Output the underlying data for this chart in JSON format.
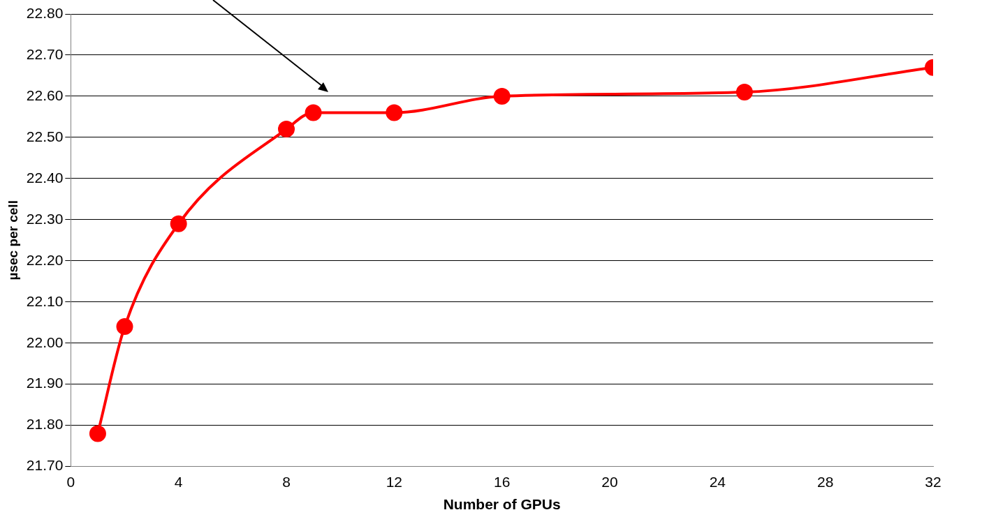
{
  "chart_data": {
    "type": "line",
    "xlabel": "Number of GPUs",
    "ylabel": "µsec per cell",
    "x": [
      1,
      2,
      4,
      8,
      9,
      12,
      16,
      25,
      32
    ],
    "series": [
      {
        "color": "#ff0000",
        "values": [
          21.78,
          22.04,
          22.29,
          22.52,
          22.56,
          22.56,
          22.6,
          22.61,
          22.67
        ]
      }
    ],
    "xlim": [
      0,
      32
    ],
    "xticks": [
      0,
      4,
      8,
      12,
      16,
      20,
      24,
      28,
      32
    ],
    "ylim": [
      21.7,
      22.8
    ],
    "yticks": [
      {
        "value": 21.7,
        "label": "21.70"
      },
      {
        "value": 21.8,
        "label": "21.80"
      },
      {
        "value": 21.9,
        "label": "21.90"
      },
      {
        "value": 22.0,
        "label": "22.00"
      },
      {
        "value": 22.1,
        "label": "22.10"
      },
      {
        "value": 22.2,
        "label": "22.20"
      },
      {
        "value": 22.3,
        "label": "22.30"
      },
      {
        "value": 22.4,
        "label": "22.40"
      },
      {
        "value": 22.5,
        "label": "22.50"
      },
      {
        "value": 22.6,
        "label": "22.60"
      },
      {
        "value": 22.7,
        "label": "22.70"
      },
      {
        "value": 22.8,
        "label": "22.80"
      }
    ],
    "grid": "y",
    "legend": false,
    "marker": "circle",
    "line_style": "solid"
  }
}
